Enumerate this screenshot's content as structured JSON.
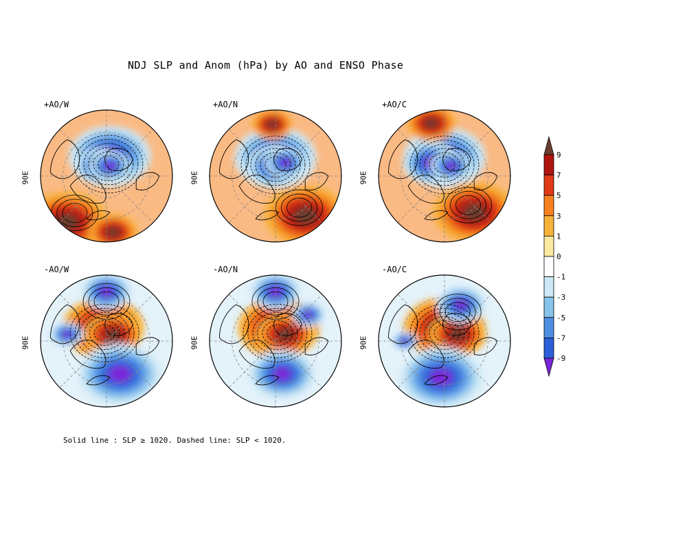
{
  "title": "NDJ SLP and Anom (hPa) by AO and ENSO Phase",
  "footnote": "Solid line : SLP ≥ 1020.  Dashed line: SLP < 1020.",
  "axis_label": "90E",
  "panels": [
    {
      "label": "+AO/W",
      "pattern": "positive-AO",
      "pos": [
        [
          0.05,
          0.3
        ],
        [
          -0.1,
          0.15
        ],
        [
          0.05,
          0.15
        ],
        [
          -0.6,
          -0.7
        ],
        [
          0.1,
          -0.85
        ]
      ],
      "strength": [
        1.0,
        0.6,
        0.5,
        1.0,
        0.6
      ],
      "sign": [
        -1,
        -1,
        -1,
        1,
        1
      ]
    },
    {
      "label": "+AO/N",
      "pattern": "positive-AO",
      "pos": [
        [
          0.0,
          0.28
        ],
        [
          0.0,
          0.15
        ],
        [
          0.15,
          0.2
        ],
        [
          0.45,
          -0.6
        ],
        [
          -0.05,
          0.78
        ]
      ],
      "strength": [
        1.0,
        0.7,
        0.5,
        1.0,
        0.5
      ],
      "sign": [
        -1,
        -1,
        -1,
        1,
        1
      ]
    },
    {
      "label": "+AO/C",
      "pattern": "positive-AO",
      "pos": [
        [
          0.0,
          0.28
        ],
        [
          -0.2,
          0.2
        ],
        [
          0.1,
          0.15
        ],
        [
          0.45,
          -0.55
        ],
        [
          -0.2,
          0.8
        ]
      ],
      "strength": [
        1.0,
        0.7,
        0.5,
        1.0,
        0.6
      ],
      "sign": [
        -1,
        -1,
        -1,
        1,
        1
      ]
    },
    {
      "label": "-AO/W",
      "pattern": "negative-AO",
      "pos": [
        [
          -0.05,
          0.2
        ],
        [
          0.1,
          0.1
        ],
        [
          0.2,
          -0.5
        ],
        [
          0.0,
          0.75
        ],
        [
          -0.6,
          0.1
        ]
      ],
      "strength": [
        1.0,
        0.7,
        1.0,
        0.6,
        0.4
      ],
      "sign": [
        1,
        1,
        -1,
        -1,
        -1
      ]
    },
    {
      "label": "-AO/N",
      "pattern": "negative-AO",
      "pos": [
        [
          0.05,
          0.2
        ],
        [
          0.15,
          0.1
        ],
        [
          0.1,
          -0.5
        ],
        [
          0.0,
          0.75
        ],
        [
          0.5,
          0.4
        ]
      ],
      "strength": [
        1.0,
        0.7,
        0.8,
        0.6,
        0.4
      ],
      "sign": [
        1,
        1,
        -1,
        -1,
        -1
      ]
    },
    {
      "label": "-AO/C",
      "pattern": "negative-AO",
      "pos": [
        [
          0.0,
          0.2
        ],
        [
          0.2,
          0.1
        ],
        [
          -0.05,
          -0.55
        ],
        [
          0.25,
          0.55
        ],
        [
          -0.6,
          0.0
        ]
      ],
      "strength": [
        1.0,
        0.7,
        1.0,
        0.6,
        0.3
      ],
      "sign": [
        1,
        1,
        -1,
        -1,
        -1
      ]
    }
  ],
  "colorbar": {
    "ticks": [
      "9",
      "7",
      "5",
      "3",
      "1",
      "0",
      "-1",
      "-3",
      "-5",
      "-7",
      "-9"
    ],
    "colors_top_to_bottom": [
      "#6b3d2e",
      "#b0150f",
      "#e03a18",
      "#f6821f",
      "#f7b23a",
      "#fbe9a0",
      "#ffffff",
      "#cde8f6",
      "#88c3ec",
      "#4f8fe3",
      "#2c5fd9",
      "#7a26d8"
    ]
  },
  "colors": {
    "land_outline": "#000000",
    "graticule": "#888888",
    "frame": "#000000"
  }
}
